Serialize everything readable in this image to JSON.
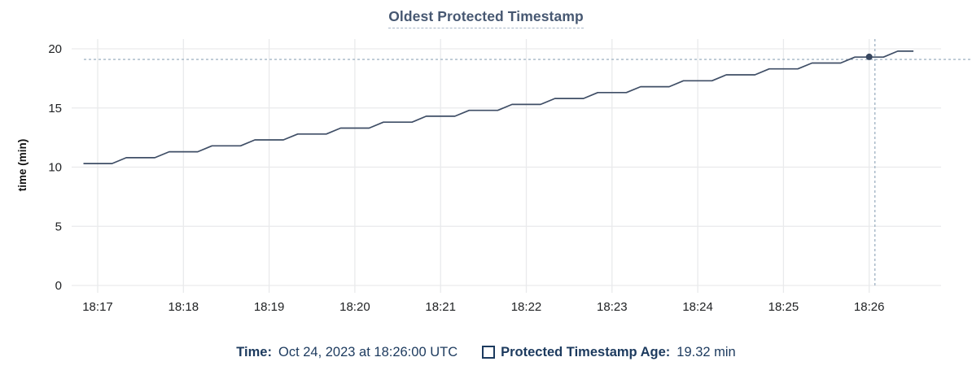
{
  "title": {
    "text": "Oldest Protected Timestamp"
  },
  "y_axis": {
    "label": "time (min)",
    "ticks": [
      0,
      5,
      10,
      15,
      20
    ]
  },
  "x_axis": {
    "ticks": [
      "18:17",
      "18:18",
      "18:19",
      "18:20",
      "18:21",
      "18:22",
      "18:23",
      "18:24",
      "18:25",
      "18:26"
    ]
  },
  "chart_data": {
    "type": "line",
    "title": "Oldest Protected Timestamp",
    "xlabel": "",
    "ylabel": "time (min)",
    "ylim": [
      0,
      20
    ],
    "grid": true,
    "x_range": [
      "18:16:50",
      "18:26:31"
    ],
    "x_tick_labels": [
      "18:17",
      "18:18",
      "18:19",
      "18:20",
      "18:21",
      "18:22",
      "18:23",
      "18:24",
      "18:25",
      "18:26"
    ],
    "series": [
      {
        "name": "Protected Timestamp Age",
        "unit": "min",
        "points": [
          [
            "18:16:50",
            10.3
          ],
          [
            "18:17:10",
            10.3
          ],
          [
            "18:17:20",
            10.8
          ],
          [
            "18:17:40",
            10.8
          ],
          [
            "18:17:50",
            11.3
          ],
          [
            "18:18:10",
            11.3
          ],
          [
            "18:18:20",
            11.8
          ],
          [
            "18:18:40",
            11.8
          ],
          [
            "18:18:50",
            12.3
          ],
          [
            "18:19:10",
            12.3
          ],
          [
            "18:19:20",
            12.8
          ],
          [
            "18:19:40",
            12.8
          ],
          [
            "18:19:50",
            13.3
          ],
          [
            "18:20:10",
            13.3
          ],
          [
            "18:20:20",
            13.8
          ],
          [
            "18:20:40",
            13.8
          ],
          [
            "18:20:50",
            14.3
          ],
          [
            "18:21:10",
            14.3
          ],
          [
            "18:21:20",
            14.8
          ],
          [
            "18:21:40",
            14.8
          ],
          [
            "18:21:50",
            15.3
          ],
          [
            "18:22:10",
            15.3
          ],
          [
            "18:22:20",
            15.8
          ],
          [
            "18:22:40",
            15.8
          ],
          [
            "18:22:50",
            16.3
          ],
          [
            "18:23:10",
            16.3
          ],
          [
            "18:23:20",
            16.8
          ],
          [
            "18:23:40",
            16.8
          ],
          [
            "18:23:50",
            17.3
          ],
          [
            "18:24:10",
            17.3
          ],
          [
            "18:24:20",
            17.8
          ],
          [
            "18:24:40",
            17.8
          ],
          [
            "18:24:50",
            18.3
          ],
          [
            "18:25:10",
            18.3
          ],
          [
            "18:25:20",
            18.8
          ],
          [
            "18:25:40",
            18.8
          ],
          [
            "18:25:50",
            19.3
          ],
          [
            "18:26:10",
            19.3
          ],
          [
            "18:26:20",
            19.8
          ],
          [
            "18:26:31",
            19.8
          ]
        ]
      }
    ],
    "hover_point": {
      "time": "18:26:00",
      "value": 19.32
    },
    "crosshair": {
      "x_time": "18:26:04",
      "y_value": 19.1
    },
    "legend_position": "bottom"
  },
  "legend": {
    "time_label": "Time:",
    "time_value": "Oct 24, 2023 at 18:26:00 UTC",
    "series_label": "Protected Timestamp Age:",
    "series_value": "19.32 min"
  },
  "colors": {
    "line": "#3f4e66",
    "dot": "#36465f",
    "grid": "#e9eaec",
    "crosshair": "#a4b6c6",
    "title": "#475872",
    "legend_text": "#1c3a5e",
    "tick_label": "#202224",
    "axis_label": "#111111"
  }
}
